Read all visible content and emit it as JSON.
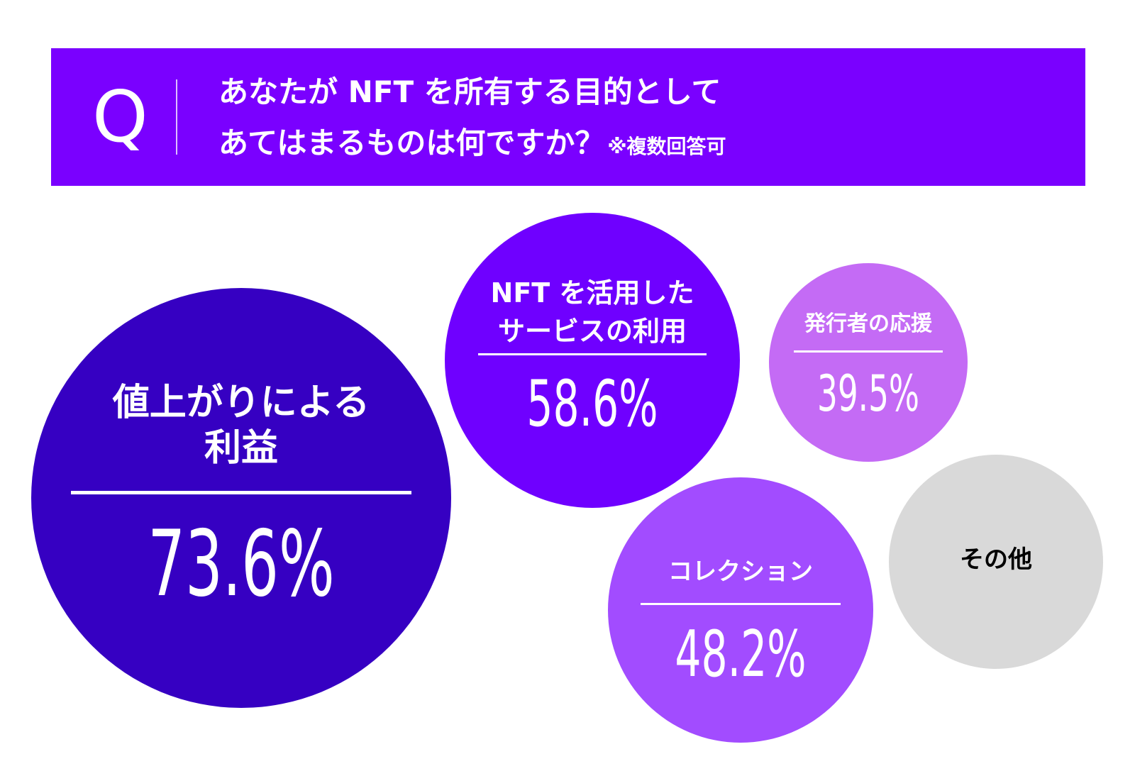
{
  "question": {
    "badge": "Q",
    "line1": "あなたが NFT を所有する目的として",
    "line2": "あてはまるものは何ですか？",
    "note": "※複数回答可"
  },
  "colors": {
    "banner": "#7a00ff",
    "text_on_dark": "#ffffff",
    "text_on_light": "#000000"
  },
  "chart_data": {
    "type": "bubble",
    "title": "あなたが NFT を所有する目的としてあてはまるものは何ですか？",
    "note": "※複数回答可",
    "unit": "%",
    "items": [
      {
        "label_lines": [
          "値上がりによる",
          "利益"
        ],
        "value": 73.6,
        "display": "73.6%",
        "color": "#3600c2"
      },
      {
        "label_lines": [
          "NFT を活用した",
          "サービスの利用"
        ],
        "value": 58.6,
        "display": "58.6%",
        "color": "#6f00ff"
      },
      {
        "label_lines": [
          "発行者の応援"
        ],
        "value": 39.5,
        "display": "39.5%",
        "color": "#c46bf5"
      },
      {
        "label_lines": [
          "コレクション"
        ],
        "value": 48.2,
        "display": "48.2%",
        "color": "#a24cff"
      },
      {
        "label_lines": [
          "その他"
        ],
        "value": null,
        "display": "",
        "color": "#d9d9d9"
      }
    ]
  }
}
